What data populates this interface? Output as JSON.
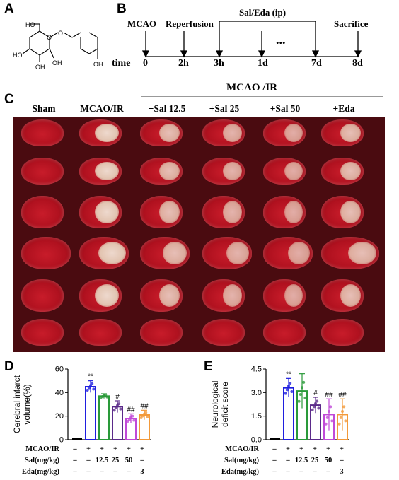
{
  "panels": {
    "a": "A",
    "b": "B",
    "c": "C",
    "d": "D",
    "e": "E"
  },
  "structure": {
    "atoms": [
      "HO",
      "HO",
      "OH",
      "OH",
      "O",
      "O",
      "OH"
    ]
  },
  "timeline": {
    "top_labels": [
      "MCAO",
      "Reperfusion",
      "Sal/Eda (ip)",
      "Sacrifice"
    ],
    "dots": "...",
    "axis_label": "time",
    "ticks": [
      "0",
      "2h",
      "3h",
      "1d",
      "7d",
      "8d"
    ]
  },
  "group_header": "MCAO /IR",
  "columns": [
    "Sham",
    "MCAO/IR",
    "+Sal 12.5",
    "+Sal 25",
    "+Sal 50",
    "+Eda"
  ],
  "table": {
    "rows": [
      {
        "label": "MCAO/IR",
        "values": [
          "–",
          "+",
          "+",
          "+",
          "+",
          "+"
        ]
      },
      {
        "label": "Sal(mg/kg)",
        "values": [
          "–",
          "–",
          "12.5",
          "25",
          "50",
          "–"
        ]
      },
      {
        "label": "Eda(mg/kg)",
        "values": [
          "–",
          "–",
          "–",
          "–",
          "–",
          "3"
        ]
      }
    ]
  },
  "chart_data": [
    {
      "type": "bar",
      "ylabel": "Cerebral infarct\nvolume(%)",
      "ylim": [
        0,
        60
      ],
      "yticks": [
        "0",
        "20",
        "40",
        "60"
      ],
      "values": [
        0,
        45,
        37,
        28,
        18,
        21
      ],
      "errors": [
        0,
        5,
        2,
        5,
        4,
        4
      ],
      "annotations": [
        "",
        "**",
        "",
        "#",
        "##",
        "##"
      ],
      "colors": [
        "#000000",
        "#1f1fdf",
        "#2a9a3a",
        "#5b2a8a",
        "#c04ad8",
        "#f39a3a"
      ]
    },
    {
      "type": "bar",
      "ylabel": "Neurological\ndeficit score",
      "ylim": [
        0,
        4.5
      ],
      "yticks": [
        "0.0",
        "1.5",
        "3.0",
        "4.5"
      ],
      "values": [
        0,
        3.3,
        3.1,
        2.2,
        1.6,
        1.6
      ],
      "errors": [
        0,
        0.6,
        1.1,
        0.5,
        1.0,
        1.0
      ],
      "annotations": [
        "",
        "**",
        "",
        "#",
        "##",
        "##"
      ],
      "colors": [
        "#000000",
        "#1f1fdf",
        "#2a9a3a",
        "#5b2a8a",
        "#c04ad8",
        "#f39a3a"
      ]
    }
  ]
}
